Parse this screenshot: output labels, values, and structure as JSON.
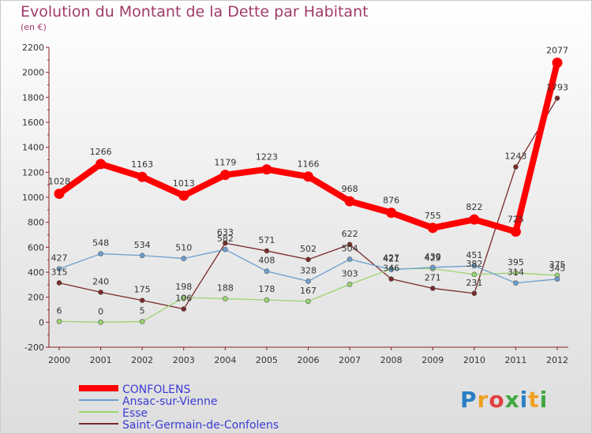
{
  "header": {
    "title": "Evolution du Montant de la Dette par Habitant",
    "subtitle": "(en €)"
  },
  "logo": {
    "parts": [
      "P",
      "r",
      "o",
      "x",
      "i",
      "t",
      "i"
    ]
  },
  "chart_data": {
    "type": "line",
    "title": "Evolution du Montant de la Dette par Habitant",
    "ylabel": "(en €)",
    "xlabel": "",
    "ylim": [
      -200,
      2200
    ],
    "yticks": [
      -200,
      0,
      200,
      400,
      600,
      800,
      1000,
      1200,
      1400,
      1600,
      1800,
      2000,
      2200
    ],
    "categories": [
      "2000",
      "2001",
      "2002",
      "2003",
      "2004",
      "2005",
      "2006",
      "2007",
      "2008",
      "2009",
      "2010",
      "2011",
      "2012"
    ],
    "grid": false,
    "legend_position": "bottom-left",
    "series": [
      {
        "name": "CONFOLENS",
        "color": "#ff0000",
        "values": [
          1028,
          1266,
          1163,
          1013,
          1179,
          1223,
          1166,
          968,
          876,
          755,
          822,
          725,
          2077
        ]
      },
      {
        "name": "Ansac-sur-Vienne",
        "color": "#6b9fcf",
        "values": [
          427,
          548,
          534,
          510,
          582,
          408,
          328,
          504,
          421,
          439,
          451,
          314,
          345
        ]
      },
      {
        "name": "Esse",
        "color": "#9ad56f",
        "values": [
          6,
          0,
          5,
          198,
          188,
          178,
          167,
          303,
          427,
          429,
          382,
          395,
          375
        ]
      },
      {
        "name": "Saint-Germain-de-Confolens",
        "color": "#7a2a2a",
        "values": [
          315,
          240,
          175,
          106,
          633,
          571,
          502,
          622,
          346,
          271,
          231,
          1243,
          1793
        ]
      }
    ]
  }
}
